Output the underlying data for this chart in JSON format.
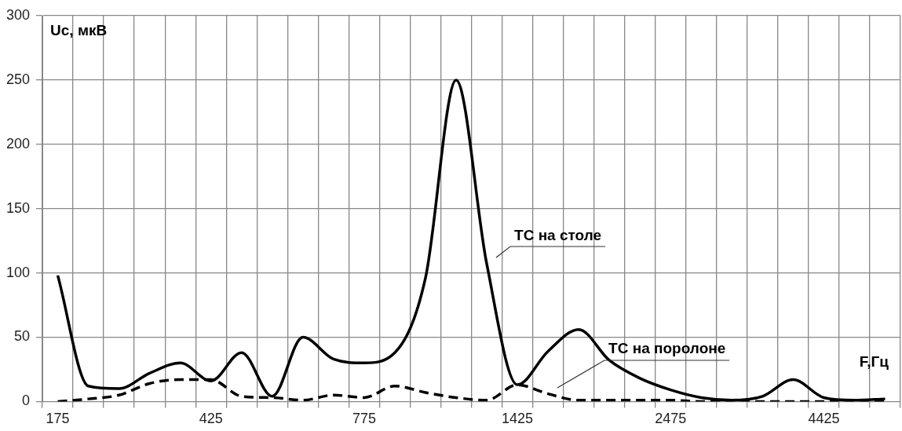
{
  "chart_data": {
    "type": "line",
    "xlabel": "F,Гц",
    "ylabel": "Uc, мкВ",
    "categories": [
      "175",
      null,
      null,
      null,
      null,
      "425",
      null,
      null,
      null,
      null,
      "775",
      null,
      null,
      null,
      null,
      "1425",
      null,
      null,
      null,
      null,
      "2475",
      null,
      null,
      null,
      null,
      "4425",
      null,
      null
    ],
    "series": [
      {
        "name": "ТС на столе",
        "color": "#000000",
        "line_style": "solid",
        "values": [
          98,
          12,
          10,
          22,
          30,
          16,
          38,
          4,
          50,
          33,
          30,
          38,
          96,
          250,
          107,
          13,
          39,
          56,
          32,
          18,
          9,
          3,
          1,
          4,
          17,
          3,
          1,
          2
        ]
      },
      {
        "name": "ТС на поролоне",
        "color": "#000000",
        "line_style": "dashed",
        "values": [
          0,
          2,
          5,
          14,
          17,
          17,
          4,
          3,
          1,
          5,
          3,
          12,
          7,
          3,
          1,
          13,
          6,
          1,
          1,
          1,
          1,
          0,
          0,
          0,
          0,
          0,
          0,
          0
        ]
      }
    ],
    "ylim": [
      0,
      300
    ],
    "yticks": [
      0,
      50,
      100,
      150,
      200,
      250,
      300
    ],
    "grid": true,
    "legend": false,
    "marker": "none"
  }
}
